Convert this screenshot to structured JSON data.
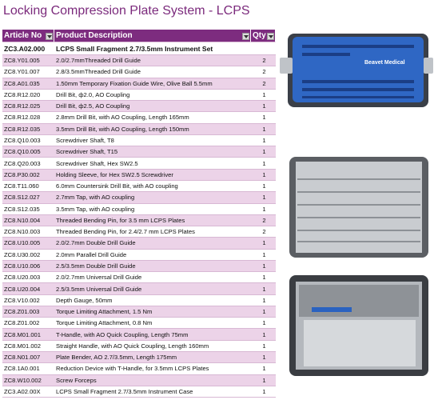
{
  "header": {
    "title": "Locking Compression Plate System - LCPS"
  },
  "table": {
    "columns": [
      "Article No",
      "Product Description",
      "Qty"
    ],
    "rows": [
      [
        "ZC3.A02.000",
        "LCPS Small Fragment 2.7/3.5mm Instrument Set"
      ],
      [
        "ZC8.Y01.005",
        "2.0/2.7mmThreaded Drill Guide",
        2
      ],
      [
        "ZC8.Y01.007",
        "2.8/3.5mmThreaded Drill Guide",
        2
      ],
      [
        "ZC8.A01.035",
        "1.50mm Temporary Fixation Guide Wire, Olive Ball 5.5mm",
        2
      ],
      [
        "ZC8.R12.020",
        "Drill Bit, ф2.0, AO Coupling",
        1
      ],
      [
        "ZC8.R12.025",
        "Drill Bit, ф2.5, AO Coupling",
        1
      ],
      [
        "ZC8.R12.028",
        "2.8mm Drill Bit, with AO Coupling, Length 165mm",
        1
      ],
      [
        "ZC8.R12.035",
        "3.5mm Drill Bit, with AO Coupling, Length 150mm",
        1
      ],
      [
        "ZC8.Q10.003",
        "Screwdriver Shaft, T8",
        1
      ],
      [
        "ZC8.Q10.005",
        "Screwdriver Shaft, T15",
        1
      ],
      [
        "ZC8.Q20.003",
        "Screwdriver Shaft, Hex SW2.5",
        1
      ],
      [
        "ZC8.P30.002",
        "Holding Sleeve, for Hex SW2.5 Screwdriver",
        1
      ],
      [
        "ZC8.T11.060",
        "6.0mm Countersink Drill Bit, with AO coupling",
        1
      ],
      [
        "ZC8.S12.027",
        "2.7mm Tap, with AO coupling",
        1
      ],
      [
        "ZC8.S12.035",
        "3.5mm Tap, with AO coupling",
        1
      ],
      [
        "ZC8.N10.004",
        "Threaded Bending Pin, for 3.5 mm LCPS Plates",
        2
      ],
      [
        "ZC8.N10.003",
        "Threaded Bending Pin, for 2.4/2.7 mm LCPS Plates",
        2
      ],
      [
        "ZC8.U10.005",
        "2.0/2.7mm Double Drill Guide",
        1
      ],
      [
        "ZC8.U30.002",
        "2.0mm Parallel Drill Guide",
        1
      ],
      [
        "ZC8.U10.006",
        "2.5/3.5mm Double Drill Guide",
        1
      ],
      [
        "ZC8.U20.003",
        "2.0/2.7mm Universal Drill Guide",
        1
      ],
      [
        "ZC8.U20.004",
        "2.5/3.5mm Universal Drill Guide",
        1
      ],
      [
        "ZC8.V10.002",
        "Depth Gauge, 50mm",
        1
      ],
      [
        "ZC8.Z01.003",
        "Torque Limiting Attachment, 1.5 Nm",
        1
      ],
      [
        "ZC8.Z01.002",
        "Torque Limiting Attachment, 0.8 Nm",
        1
      ],
      [
        "ZC8.M01.001",
        "T-Handle, with AO Quick Coupling, Length 75mm",
        1
      ],
      [
        "ZC8.M01.002",
        "Straight Handle, with AO Quick Coupling, Length 160mm",
        1
      ],
      [
        "ZC8.N01.007",
        "Plate Bender, AO 2.7/3.5mm, Length 175mm",
        1
      ],
      [
        "ZC8.1A0.001",
        "Reduction Device with T-Handle, for 3.5mm LCPS Plates",
        1
      ],
      [
        "ZC8.W10.002",
        "Screw Forceps",
        1
      ],
      [
        "ZC3.A02.00X",
        "LCPS Small Fragment 2.7/3.5mm Instrument Case",
        1
      ]
    ]
  },
  "images": {
    "case_label": "Beavet Medical"
  }
}
